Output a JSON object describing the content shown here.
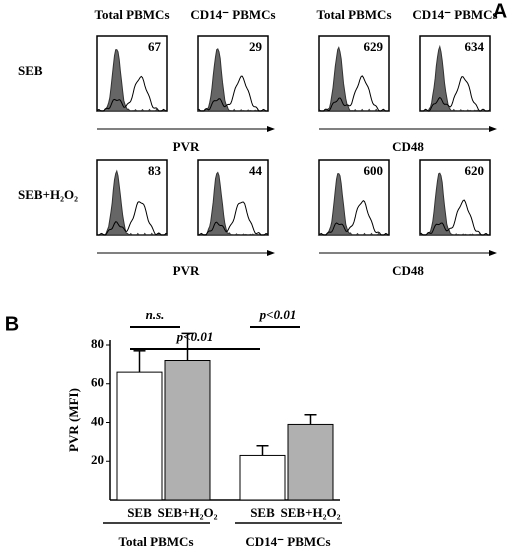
{
  "panel_a": {
    "label": "A",
    "column_headers": [
      "Total PBMCs",
      "CD14⁻ PBMCs",
      "Total PBMCs",
      "CD14⁻ PBMCs"
    ],
    "axis_labels": [
      "PVR",
      "CD48"
    ],
    "rows": [
      {
        "label": "SEB",
        "mfi": [
          "67",
          "29",
          "629",
          "634"
        ]
      },
      {
        "label": "SEB+H₂O₂",
        "mfi": [
          "83",
          "44",
          "600",
          "620"
        ]
      }
    ]
  },
  "chart_data": {
    "type": "bar",
    "label": "B",
    "ylabel": "PVR (MFI)",
    "categories": [
      "SEB",
      "SEB+H₂O₂",
      "SEB",
      "SEB+H₂O₂"
    ],
    "groups": [
      "Total PBMCs",
      "CD14⁻ PBMCs"
    ],
    "values": [
      66,
      72,
      23,
      39
    ],
    "errors": [
      11,
      14,
      5,
      5
    ],
    "colors": [
      "#ffffff",
      "#b0b0b0",
      "#ffffff",
      "#b0b0b0"
    ],
    "ylim": [
      0,
      80
    ],
    "yticks": [
      20,
      40,
      60,
      80
    ],
    "annotations": [
      "n.s.",
      "p<0.01",
      "p<0.01"
    ]
  }
}
